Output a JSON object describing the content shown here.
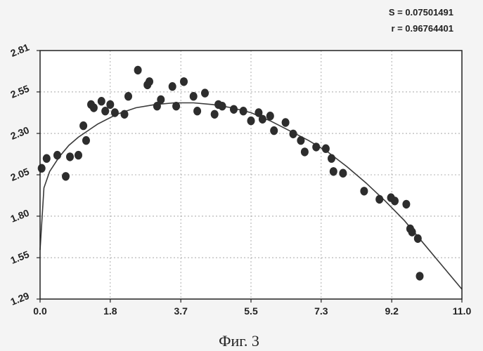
{
  "stats": {
    "s_label": "S = 0.07501491",
    "r_label": "r = 0.96764401"
  },
  "caption": "Фиг. 3",
  "colors": {
    "point": "#2d2d2d",
    "curve": "#3a3a3a",
    "frame": "#222222",
    "grid": "#9a9a9a",
    "background": "#ffffff"
  },
  "chart_data": {
    "type": "scatter",
    "title": "",
    "xlabel": "",
    "ylabel": "",
    "xlim": [
      0.0,
      11.0
    ],
    "ylim": [
      1.29,
      2.81
    ],
    "grid": true,
    "x_ticks": [
      "0.0",
      "1.8",
      "3.7",
      "5.5",
      "7.3",
      "9.2",
      "11.0"
    ],
    "y_ticks": [
      "1.29",
      "1.55",
      "1.80",
      "2.05",
      "2.30",
      "2.55",
      "2.81"
    ],
    "x_tick_values": [
      0.0,
      1.83,
      3.67,
      5.5,
      7.33,
      9.17,
      11.0
    ],
    "y_tick_values": [
      1.29,
      1.543,
      1.797,
      2.05,
      2.303,
      2.557,
      2.81
    ],
    "series": [
      {
        "kind": "points",
        "x": [
          0.04,
          0.17,
          0.45,
          0.67,
          0.78,
          1.0,
          1.13,
          1.2,
          1.33,
          1.4,
          1.6,
          1.7,
          1.83,
          1.95,
          2.2,
          2.3,
          2.55,
          2.8,
          2.85,
          3.05,
          3.15,
          3.45,
          3.55,
          3.75,
          4.0,
          4.1,
          4.3,
          4.55,
          4.65,
          4.75,
          5.05,
          5.3,
          5.5,
          5.7,
          5.8,
          6.0,
          6.1,
          6.4,
          6.6,
          6.8,
          6.9,
          7.2,
          7.45,
          7.6,
          7.65,
          7.9,
          8.45,
          8.85,
          9.15,
          9.25,
          9.55,
          9.65,
          9.7,
          9.85,
          9.9
        ],
        "y": [
          2.09,
          2.15,
          2.17,
          2.04,
          2.16,
          2.17,
          2.35,
          2.26,
          2.48,
          2.46,
          2.5,
          2.44,
          2.48,
          2.43,
          2.42,
          2.53,
          2.69,
          2.6,
          2.62,
          2.47,
          2.51,
          2.59,
          2.47,
          2.62,
          2.53,
          2.44,
          2.55,
          2.42,
          2.48,
          2.47,
          2.45,
          2.44,
          2.38,
          2.43,
          2.39,
          2.41,
          2.32,
          2.37,
          2.3,
          2.26,
          2.19,
          2.22,
          2.21,
          2.15,
          2.07,
          2.06,
          1.95,
          1.9,
          1.91,
          1.89,
          1.87,
          1.72,
          1.7,
          1.66,
          1.43
        ]
      },
      {
        "kind": "fit-curve",
        "x": [
          0.0,
          0.1,
          0.25,
          0.5,
          0.75,
          1.0,
          1.5,
          2.0,
          2.5,
          3.0,
          3.5,
          4.0,
          4.5,
          5.0,
          5.5,
          6.0,
          6.5,
          7.0,
          7.5,
          8.0,
          8.5,
          9.0,
          9.5,
          10.0,
          10.5,
          11.0
        ],
        "y": [
          1.59,
          1.97,
          2.07,
          2.16,
          2.23,
          2.28,
          2.36,
          2.42,
          2.46,
          2.48,
          2.49,
          2.49,
          2.48,
          2.46,
          2.43,
          2.38,
          2.32,
          2.26,
          2.19,
          2.1,
          2.0,
          1.89,
          1.77,
          1.63,
          1.49,
          1.35
        ]
      }
    ]
  }
}
